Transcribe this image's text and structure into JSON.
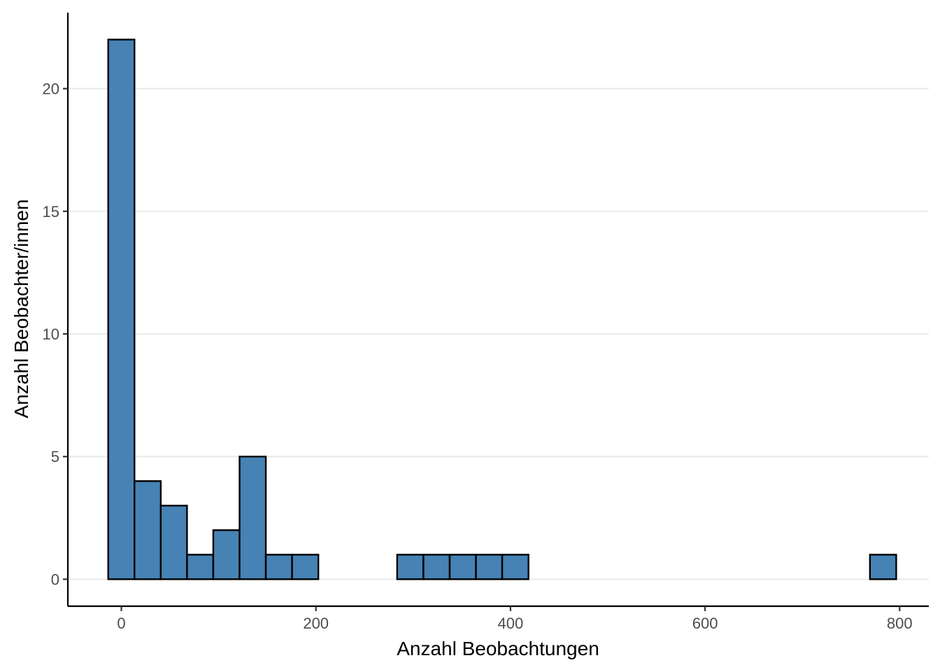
{
  "chart_data": {
    "type": "bar",
    "subtype": "histogram",
    "xlabel": "Anzahl Beobachtungen",
    "ylabel": "Anzahl Beobachter/innen",
    "xlim": [
      -55,
      830
    ],
    "ylim": [
      -1.1,
      23.1
    ],
    "x_ticks": [
      0,
      200,
      400,
      600,
      800
    ],
    "y_ticks": [
      0,
      5,
      10,
      15,
      20
    ],
    "grid": "horizontal-major",
    "bin_width": 27,
    "bins": [
      {
        "start": -13.5,
        "count": 22
      },
      {
        "start": 13.5,
        "count": 4
      },
      {
        "start": 40.5,
        "count": 3
      },
      {
        "start": 67.5,
        "count": 1
      },
      {
        "start": 94.5,
        "count": 2
      },
      {
        "start": 121.5,
        "count": 5
      },
      {
        "start": 148.5,
        "count": 1
      },
      {
        "start": 175.5,
        "count": 1
      },
      {
        "start": 202.5,
        "count": 0
      },
      {
        "start": 229.5,
        "count": 0
      },
      {
        "start": 256.5,
        "count": 0
      },
      {
        "start": 283.5,
        "count": 1
      },
      {
        "start": 310.5,
        "count": 1
      },
      {
        "start": 337.5,
        "count": 1
      },
      {
        "start": 364.5,
        "count": 1
      },
      {
        "start": 391.5,
        "count": 1
      },
      {
        "start": 418.5,
        "count": 0
      },
      {
        "start": 445.5,
        "count": 0
      },
      {
        "start": 472.5,
        "count": 0
      },
      {
        "start": 499.5,
        "count": 0
      },
      {
        "start": 526.5,
        "count": 0
      },
      {
        "start": 553.5,
        "count": 0
      },
      {
        "start": 580.5,
        "count": 0
      },
      {
        "start": 607.5,
        "count": 0
      },
      {
        "start": 634.5,
        "count": 0
      },
      {
        "start": 661.5,
        "count": 0
      },
      {
        "start": 688.5,
        "count": 0
      },
      {
        "start": 715.5,
        "count": 0
      },
      {
        "start": 742.5,
        "count": 0
      },
      {
        "start": 769.5,
        "count": 1
      }
    ],
    "colors": {
      "fill": "#4682b4",
      "stroke": "#000000",
      "grid": "#ebebeb",
      "axis": "#000000"
    }
  }
}
